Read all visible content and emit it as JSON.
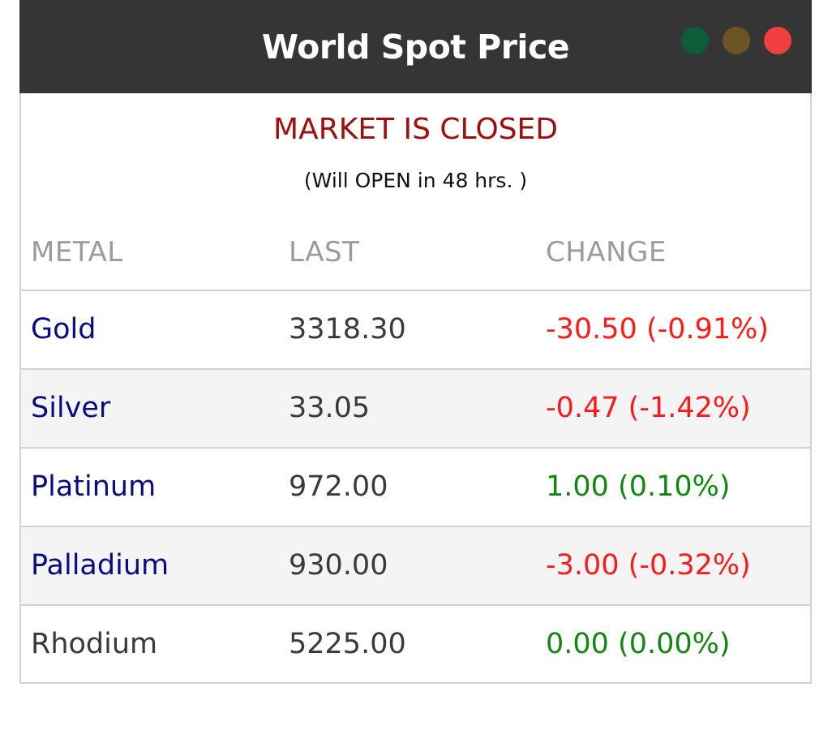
{
  "widget": {
    "title": "World Spot Price",
    "window_dots": [
      "green",
      "olive",
      "red"
    ],
    "status": "MARKET IS CLOSED",
    "substatus": "(Will OPEN in 48 hrs. )"
  },
  "table": {
    "headers": [
      "METAL",
      "LAST",
      "CHANGE"
    ],
    "rows": [
      {
        "metal": "Gold",
        "last": "3318.30",
        "change": "-30.50 (-0.91%)",
        "metal_color": "#0b0b86",
        "change_color": "#ff1a1a"
      },
      {
        "metal": "Silver",
        "last": "33.05",
        "change": "-0.47 (-1.42%)",
        "metal_color": "#0b0b86",
        "change_color": "#ff1a1a"
      },
      {
        "metal": "Platinum",
        "last": "972.00",
        "change": "1.00 (0.10%)",
        "metal_color": "#0b0b86",
        "change_color": "#128712"
      },
      {
        "metal": "Palladium",
        "last": "930.00",
        "change": "-3.00 (-0.32%)",
        "metal_color": "#0b0b86",
        "change_color": "#ff1a1a"
      },
      {
        "metal": "Rhodium",
        "last": "5225.00",
        "change": "0.00 (0.00%)",
        "metal_color": "#3a3a3a",
        "change_color": "#128712"
      }
    ]
  },
  "colors": {
    "titlebar": "#353535",
    "status": "#a10e0e",
    "header": "#9b9b9b",
    "negative": "#ff1a1a",
    "positive": "#128712",
    "link": "#0b0b86"
  }
}
